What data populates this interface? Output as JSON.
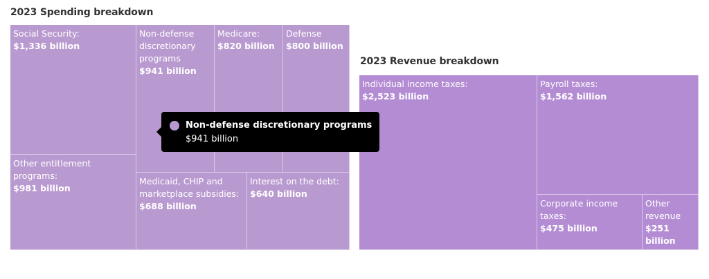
{
  "chart_data": [
    {
      "type": "treemap",
      "title": "2023 Spending breakdown",
      "color": "#b99ad0",
      "items": [
        {
          "label": "Social Security:",
          "value": 1336,
          "value_label": "$1,336 billion"
        },
        {
          "label": "Other entitlement programs:",
          "value": 981,
          "value_label": "$981 billion"
        },
        {
          "label": "Non-defense discretionary programs",
          "value": 941,
          "value_label": "$941 billion"
        },
        {
          "label": "Medicare:",
          "value": 820,
          "value_label": "$820 billion"
        },
        {
          "label": "Defense",
          "value": 800,
          "value_label": "$800 billion"
        },
        {
          "label": "Medicaid, CHIP and marketplace subsidies:",
          "value": 688,
          "value_label": "$688 billion"
        },
        {
          "label": "Interest on the debt:",
          "value": 640,
          "value_label": "$640 billion"
        }
      ]
    },
    {
      "type": "treemap",
      "title": "2023 Revenue breakdown",
      "color": "#b48cd4",
      "items": [
        {
          "label": "Individual income taxes:",
          "value": 2523,
          "value_label": "$2,523 billion"
        },
        {
          "label": "Payroll taxes:",
          "value": 1562,
          "value_label": "$1,562 billion"
        },
        {
          "label": "Corporate income taxes:",
          "value": 475,
          "value_label": "$475 billion"
        },
        {
          "label": "Other revenue",
          "value": 251,
          "value_label": "$251 billion"
        }
      ]
    }
  ],
  "tooltip": {
    "title": "Non-defense discretionary programs",
    "value": "$941 billion",
    "dot_color": "#b99ad0"
  }
}
